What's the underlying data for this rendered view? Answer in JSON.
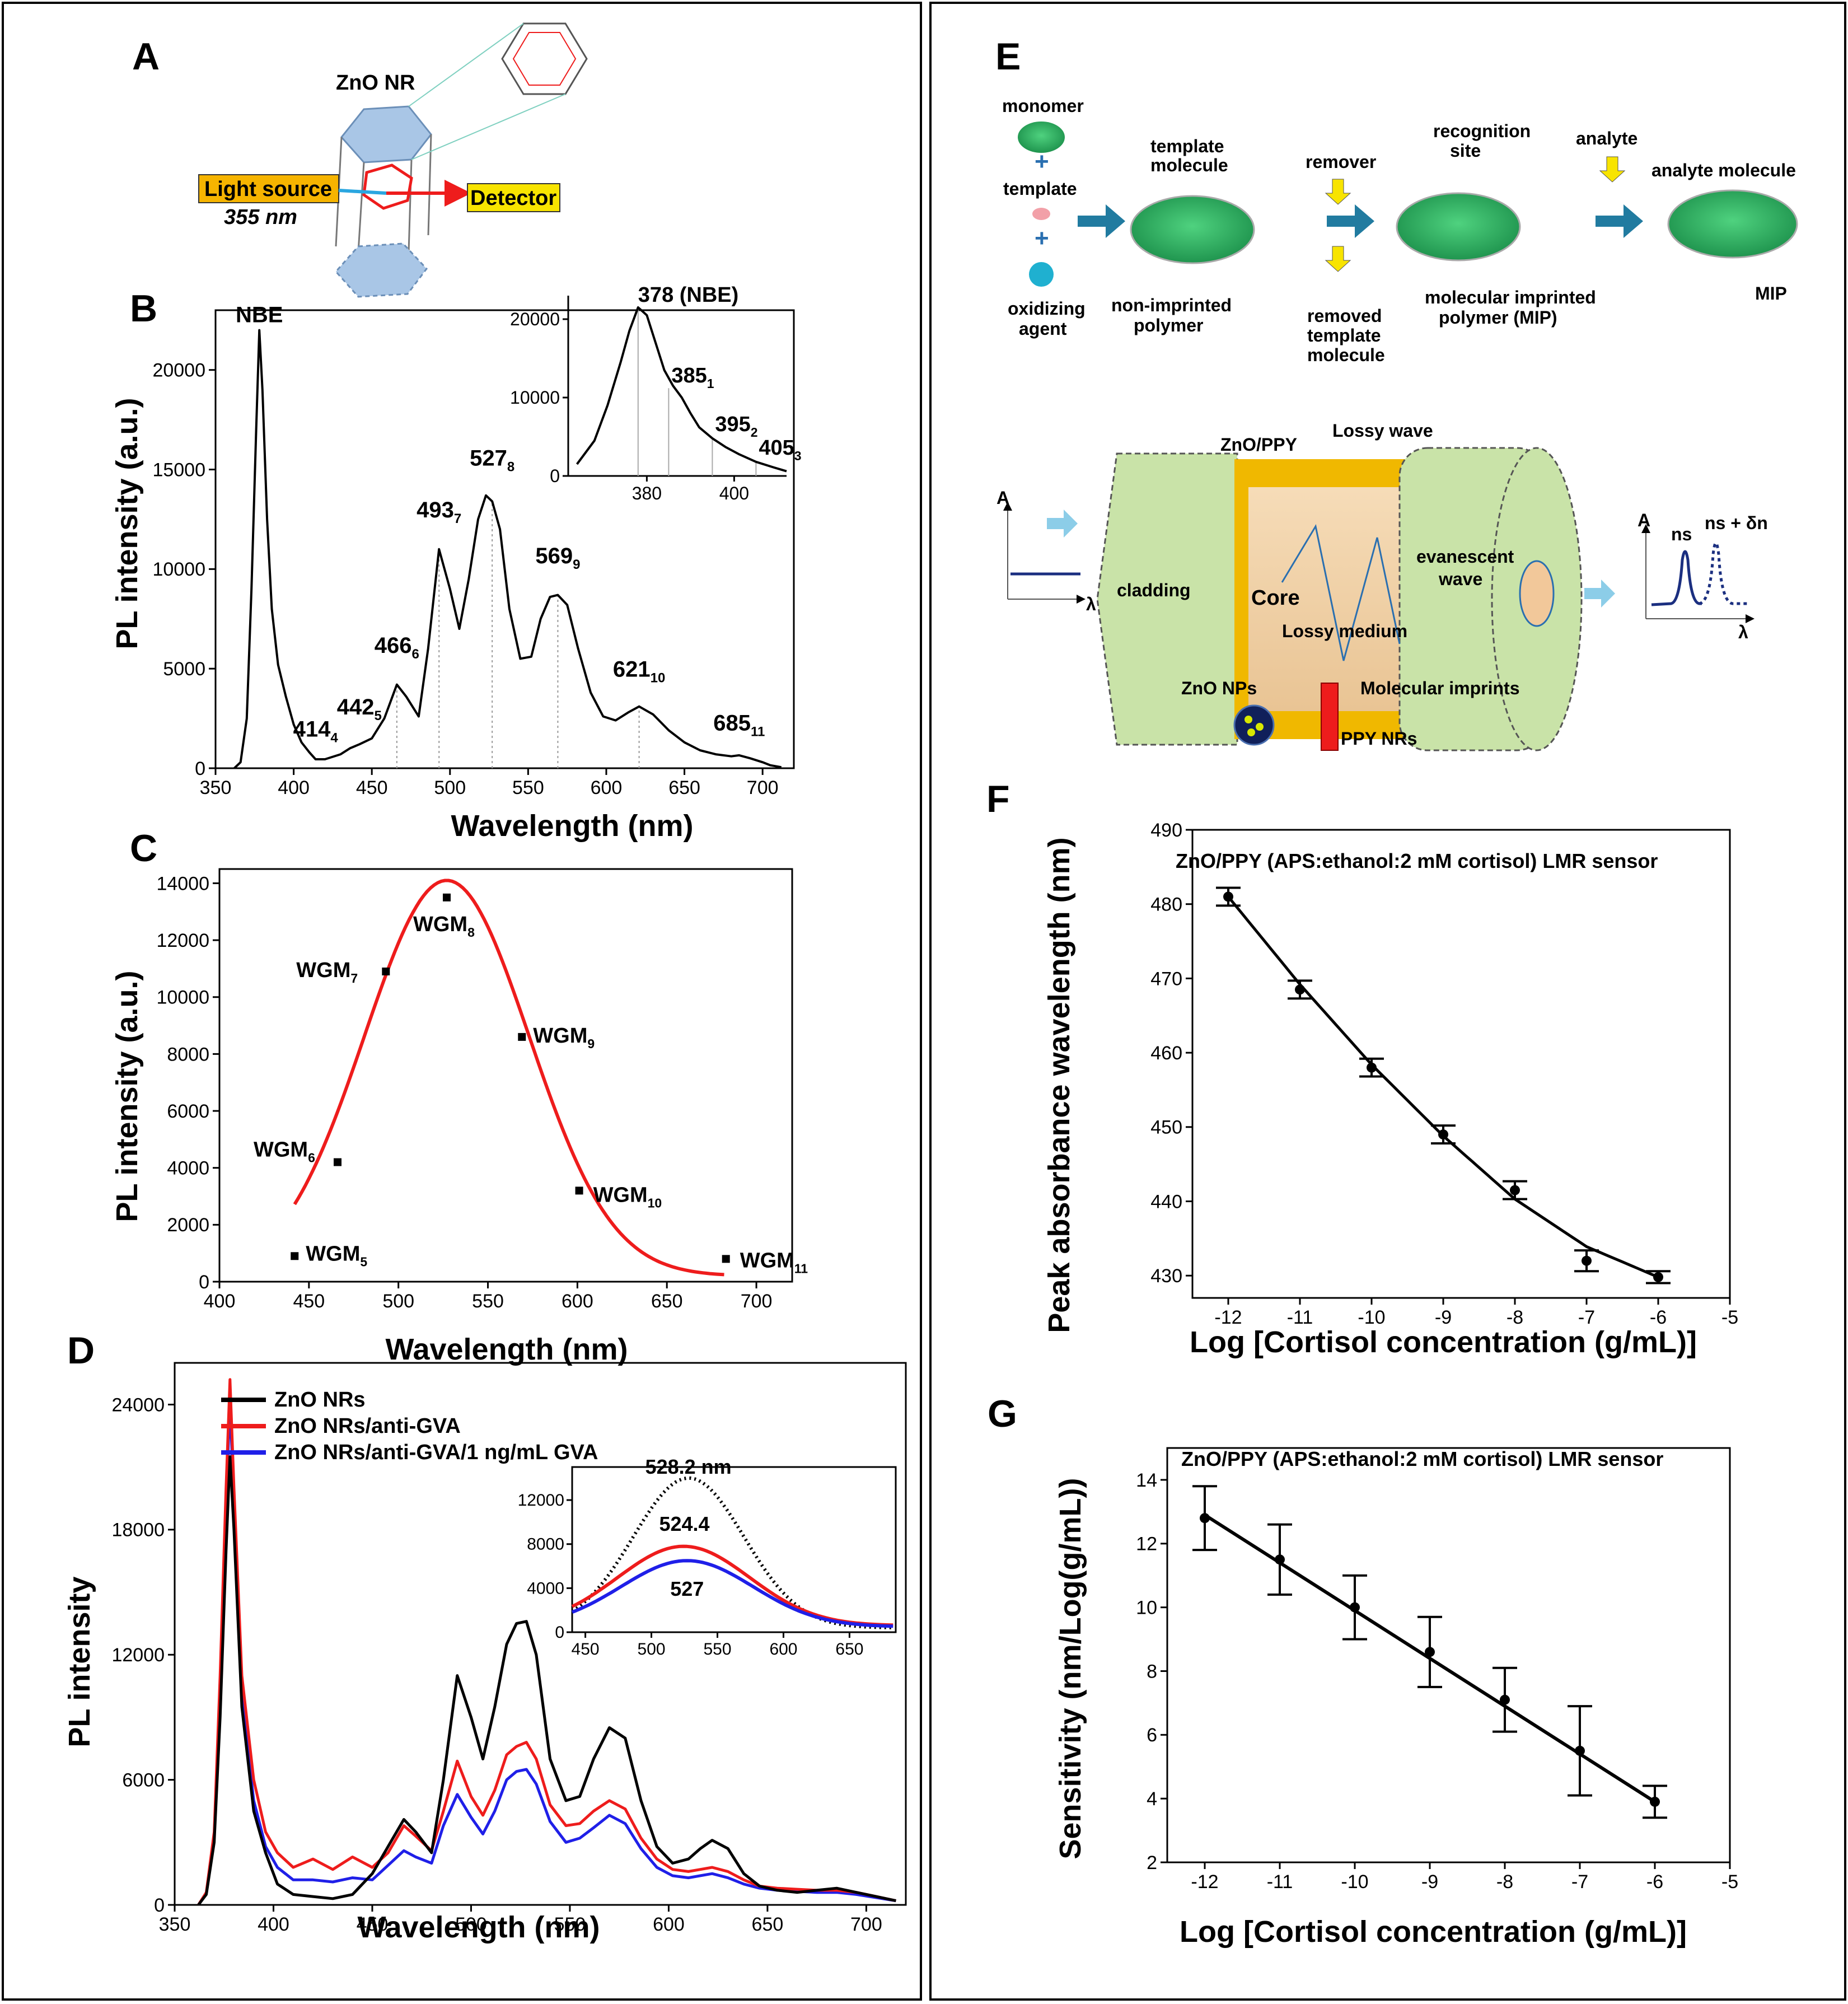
{
  "panels": {
    "A": {
      "letter": "A",
      "title": "ZnO NR",
      "light_source": "Light source",
      "wavelength": "355 nm",
      "detector": "Detector"
    },
    "E": {
      "letter": "E",
      "monomer": "monomer",
      "template": "template",
      "oxidizing_1": "oxidizing",
      "oxidizing_2": "agent",
      "template_molecule_1": "template",
      "template_molecule_2": "molecule",
      "non_imprinted_1": "non-imprinted",
      "non_imprinted_2": "polymer",
      "remover": "remover",
      "removed_1": "removed",
      "removed_2": "template",
      "removed_3": "molecule",
      "recognition_1": "recognition",
      "recognition_2": "site",
      "mip_1": "molecular imprinted",
      "mip_2": "polymer (MIP)",
      "analyte": "analyte",
      "analyte_molecule": "analyte molecule",
      "mip": "MIP",
      "zno_ppy": "ZnO/PPY",
      "lossy_wave": "Lossy wave",
      "cladding": "cladding",
      "core": "Core",
      "evanescent_1": "evanescent",
      "evanescent_2": "wave",
      "lossy_medium": "Lossy medium",
      "zno_nps": "ZnO NPs",
      "molecular_imprints": "Molecular imprints",
      "ppy_nrs": "PPY NRs",
      "axis_a": "A",
      "axis_lambda": "λ",
      "ns": "ns",
      "ns_dn": "ns + δn"
    }
  },
  "chart_data": [
    {
      "id": "B",
      "letter": "B",
      "type": "line",
      "xlabel": "Wavelength (nm)",
      "ylabel": "PL intensity (a.u.)",
      "xlim": [
        350,
        720
      ],
      "ylim": [
        0,
        23000
      ],
      "xticks": [
        350,
        400,
        450,
        500,
        550,
        600,
        650,
        700
      ],
      "yticks": [
        0,
        5000,
        10000,
        15000,
        20000
      ],
      "series": [
        {
          "name": "PL",
          "color": "#000000",
          "x": [
            362,
            366,
            370,
            373,
            376,
            378,
            380,
            383,
            386,
            390,
            395,
            400,
            405,
            410,
            414,
            420,
            430,
            436,
            442,
            450,
            458,
            466,
            472,
            480,
            486,
            493,
            500,
            506,
            512,
            518,
            523,
            527,
            532,
            538,
            545,
            552,
            558,
            564,
            569,
            575,
            582,
            590,
            598,
            606,
            614,
            621,
            630,
            640,
            650,
            660,
            670,
            680,
            685,
            692,
            700,
            705,
            712
          ],
          "y": [
            0,
            300,
            2500,
            9000,
            17000,
            22000,
            19000,
            12500,
            8000,
            5200,
            3600,
            2200,
            1300,
            800,
            450,
            450,
            700,
            1000,
            1200,
            1500,
            2500,
            4200,
            3600,
            2600,
            6000,
            11000,
            9000,
            7000,
            9500,
            12500,
            13700,
            13400,
            12000,
            8000,
            5500,
            5600,
            7500,
            8600,
            8700,
            8200,
            6000,
            3800,
            2600,
            2400,
            2800,
            3100,
            2700,
            1900,
            1300,
            900,
            700,
            600,
            650,
            500,
            300,
            150,
            50
          ]
        }
      ],
      "peak_labels": [
        {
          "x": 378,
          "y": 22000,
          "text": "NBE",
          "sub": ""
        },
        {
          "x": 414,
          "y": 1200,
          "text": "414",
          "sub": "4"
        },
        {
          "x": 442,
          "y": 2300,
          "text": "442",
          "sub": "5"
        },
        {
          "x": 466,
          "y": 5400,
          "text": "466",
          "sub": "6"
        },
        {
          "x": 493,
          "y": 12200,
          "text": "493",
          "sub": "7"
        },
        {
          "x": 527,
          "y": 14800,
          "text": "527",
          "sub": "8"
        },
        {
          "x": 569,
          "y": 9900,
          "text": "569",
          "sub": "9"
        },
        {
          "x": 621,
          "y": 4200,
          "text": "621",
          "sub": "10"
        },
        {
          "x": 685,
          "y": 1500,
          "text": "685",
          "sub": "11"
        }
      ],
      "dotted_lines": [
        466,
        493,
        527,
        569,
        621
      ],
      "inset": {
        "xlim": [
          362,
          412
        ],
        "ylim": [
          0,
          23000
        ],
        "xticks": [
          380,
          400
        ],
        "yticks": [
          0,
          10000,
          20000
        ],
        "x": [
          364,
          368,
          371,
          374,
          376,
          378,
          380,
          382,
          384,
          386,
          388,
          390,
          392,
          395,
          398,
          401,
          405,
          409,
          412
        ],
        "y": [
          1500,
          4500,
          9000,
          14500,
          18500,
          21500,
          20500,
          17000,
          13500,
          11500,
          10000,
          8000,
          6200,
          4800,
          3700,
          2800,
          1800,
          1100,
          600
        ],
        "labels": [
          {
            "x": 378,
            "y": 21500,
            "text": "378 (NBE)",
            "sub": ""
          },
          {
            "x": 385,
            "y": 11200,
            "text": "385",
            "sub": "1"
          },
          {
            "x": 395,
            "y": 5000,
            "text": "395",
            "sub": "2"
          },
          {
            "x": 405,
            "y": 2000,
            "text": "405",
            "sub": "3"
          }
        ]
      }
    },
    {
      "id": "C",
      "letter": "C",
      "type": "scatter",
      "xlabel": "Wavelength (nm)",
      "ylabel": "PL intensity (a.u.)",
      "xlim": [
        400,
        720
      ],
      "ylim": [
        0,
        14500
      ],
      "xticks": [
        400,
        450,
        500,
        550,
        600,
        650,
        700
      ],
      "yticks": [
        0,
        2000,
        4000,
        6000,
        8000,
        10000,
        12000,
        14000
      ],
      "points": [
        {
          "x": 442,
          "y": 900,
          "label": "WGM",
          "sub": "5"
        },
        {
          "x": 466,
          "y": 4200,
          "label": "WGM",
          "sub": "6"
        },
        {
          "x": 493,
          "y": 10900,
          "label": "WGM",
          "sub": "7"
        },
        {
          "x": 527,
          "y": 13500,
          "label": "WGM",
          "sub": "8"
        },
        {
          "x": 569,
          "y": 8600,
          "label": "WGM",
          "sub": "9"
        },
        {
          "x": 601,
          "y": 3200,
          "label": "WGM",
          "sub": "10"
        },
        {
          "x": 683,
          "y": 800,
          "label": "WGM",
          "sub": "11"
        }
      ],
      "fit": {
        "type": "gaussian",
        "amplitude": 13900,
        "center": 527,
        "sigma": 46,
        "offset": 200,
        "from": 442,
        "to": 682,
        "color": "#ee1c1c"
      }
    },
    {
      "id": "D",
      "letter": "D",
      "type": "line",
      "xlabel": "Wavelength (nm)",
      "ylabel": "PL intensity",
      "xlim": [
        350,
        720
      ],
      "ylim": [
        0,
        26000
      ],
      "xticks": [
        350,
        400,
        450,
        500,
        550,
        600,
        650,
        700
      ],
      "yticks": [
        0,
        6000,
        12000,
        18000,
        24000
      ],
      "series": [
        {
          "name": "ZnO NRs",
          "color": "#000000",
          "x": [
            362,
            366,
            370,
            373,
            376,
            378,
            380,
            384,
            390,
            396,
            402,
            410,
            420,
            430,
            440,
            450,
            458,
            466,
            472,
            480,
            486,
            493,
            500,
            506,
            512,
            518,
            523,
            528,
            533,
            540,
            548,
            555,
            562,
            570,
            578,
            586,
            594,
            602,
            610,
            616,
            622,
            630,
            638,
            646,
            655,
            665,
            675,
            685,
            695,
            705,
            715
          ],
          "y": [
            0,
            500,
            3000,
            9000,
            17000,
            21500,
            18000,
            9500,
            4500,
            2500,
            1000,
            500,
            400,
            300,
            500,
            1500,
            2800,
            4100,
            3500,
            2500,
            6000,
            11000,
            9000,
            7000,
            9500,
            12500,
            13500,
            13600,
            12000,
            7000,
            5000,
            5200,
            7000,
            8500,
            8000,
            5000,
            2800,
            2000,
            2200,
            2700,
            3100,
            2700,
            1500,
            900,
            700,
            600,
            700,
            800,
            600,
            400,
            200
          ]
        },
        {
          "name": "ZnO NRs/anti-GVA",
          "color": "#ee1c1c",
          "x": [
            362,
            366,
            370,
            373,
            376,
            378,
            380,
            384,
            390,
            396,
            402,
            410,
            420,
            430,
            440,
            450,
            458,
            466,
            472,
            480,
            486,
            493,
            500,
            506,
            512,
            518,
            523,
            528,
            533,
            540,
            548,
            555,
            562,
            570,
            578,
            586,
            594,
            602,
            610,
            616,
            622,
            630,
            638,
            646,
            655,
            665,
            675,
            685,
            695,
            705,
            715
          ],
          "y": [
            0,
            600,
            3500,
            11000,
            20000,
            25200,
            20000,
            11000,
            6000,
            3500,
            2500,
            1800,
            2200,
            1700,
            2300,
            1800,
            2500,
            3800,
            3300,
            2600,
            4500,
            6900,
            5200,
            4300,
            5500,
            7200,
            7600,
            7800,
            7000,
            4800,
            3800,
            3900,
            4500,
            5000,
            4600,
            3200,
            2200,
            1700,
            1600,
            1700,
            1800,
            1600,
            1200,
            900,
            800,
            750,
            700,
            700,
            600,
            400,
            200
          ]
        },
        {
          "name": "ZnO NRs/anti-GVA/1 ng/mL GVA",
          "color": "#1f1fe8",
          "x": [
            362,
            366,
            370,
            373,
            376,
            378,
            380,
            384,
            390,
            396,
            402,
            410,
            420,
            430,
            440,
            450,
            458,
            466,
            472,
            480,
            486,
            493,
            500,
            506,
            512,
            518,
            523,
            528,
            533,
            540,
            548,
            555,
            562,
            570,
            578,
            586,
            594,
            602,
            610,
            616,
            622,
            630,
            638,
            646,
            655,
            665,
            675,
            685,
            695,
            705,
            715
          ],
          "y": [
            0,
            550,
            3300,
            10500,
            19500,
            24000,
            19500,
            10000,
            5000,
            2800,
            1800,
            1200,
            1200,
            1100,
            1300,
            1200,
            1900,
            2600,
            2300,
            2000,
            3800,
            5300,
            4200,
            3400,
            4500,
            6000,
            6400,
            6500,
            5800,
            4000,
            3000,
            3200,
            3700,
            4300,
            3900,
            2700,
            1800,
            1400,
            1300,
            1400,
            1500,
            1300,
            1000,
            800,
            700,
            650,
            600,
            600,
            500,
            350,
            200
          ]
        }
      ],
      "inset": {
        "xlim": [
          440,
          685
        ],
        "ylim": [
          0,
          15000
        ],
        "xticks": [
          450,
          500,
          550,
          600,
          650
        ],
        "yticks": [
          0,
          4000,
          8000,
          12000
        ],
        "series": [
          {
            "name": "ZnO NRs",
            "color": "#000000",
            "dashed": true,
            "amplitude": 13600,
            "center": 528.2,
            "sigma": 42,
            "offset": 400
          },
          {
            "name": "ZnO NRs/anti-GVA",
            "color": "#ee1c1c",
            "dashed": false,
            "amplitude": 7200,
            "center": 524.4,
            "sigma": 50,
            "offset": 600
          },
          {
            "name": "ZnO NRs/anti-GVA/1 ng/mL GVA",
            "color": "#1f1fe8",
            "dashed": false,
            "amplitude": 6000,
            "center": 527,
            "sigma": 50,
            "offset": 500
          }
        ],
        "labels": [
          {
            "x": 528,
            "y": 14400,
            "text": "528.2 nm"
          },
          {
            "x": 525,
            "y": 9200,
            "text": "524.4"
          },
          {
            "x": 527,
            "y": 3300,
            "text": "527"
          }
        ]
      }
    },
    {
      "id": "F",
      "letter": "F",
      "type": "scatter",
      "title": "ZnO/PPY (APS:ethanol:2 mM cortisol) LMR sensor",
      "xlabel": "Log [Cortisol concentration (g/mL)]",
      "ylabel": "Peak absorbance wavelength (nm)",
      "xlim": [
        -12.5,
        -5
      ],
      "ylim": [
        427,
        490
      ],
      "xticks": [
        -12,
        -11,
        -10,
        -9,
        -8,
        -7,
        -6,
        -5
      ],
      "yticks": [
        430,
        440,
        450,
        460,
        470,
        480,
        490
      ],
      "x": [
        -12,
        -11,
        -10,
        -9,
        -8,
        -7,
        -6
      ],
      "y": [
        481,
        468.5,
        458,
        449,
        441.5,
        432,
        429.8
      ],
      "err": [
        1.2,
        1.2,
        1.2,
        1.2,
        1.2,
        1.4,
        0.8
      ],
      "fit_y": [
        481,
        469.2,
        458.4,
        448.8,
        440.3,
        433.9,
        429.8
      ]
    },
    {
      "id": "G",
      "letter": "G",
      "type": "scatter",
      "title": "ZnO/PPY (APS:ethanol:2 mM cortisol) LMR sensor",
      "xlabel": "Log [Cortisol concentration (g/mL)]",
      "ylabel": "Sensitivity (nm/Log(g/mL))",
      "xlim": [
        -12.5,
        -5
      ],
      "ylim": [
        2,
        15
      ],
      "xticks": [
        -12,
        -11,
        -10,
        -9,
        -8,
        -7,
        -6,
        -5
      ],
      "yticks": [
        2,
        4,
        6,
        8,
        10,
        12,
        14
      ],
      "x": [
        -12,
        -11,
        -10,
        -9,
        -8,
        -7,
        -6
      ],
      "y": [
        12.8,
        11.5,
        10.0,
        8.6,
        7.1,
        5.5,
        3.9
      ],
      "err": [
        1.0,
        1.1,
        1.0,
        1.1,
        1.0,
        1.4,
        0.5
      ],
      "fit": [
        [
          -12,
          12.9
        ],
        [
          -6,
          3.9
        ]
      ]
    }
  ]
}
